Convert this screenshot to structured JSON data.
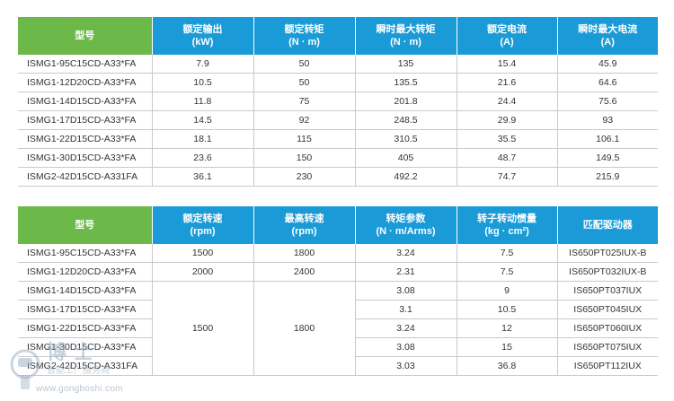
{
  "table1": {
    "headers": [
      {
        "l1": "型号",
        "l2": ""
      },
      {
        "l1": "额定输出",
        "l2": "(kW)"
      },
      {
        "l1": "额定转矩",
        "l2": "(N · m)"
      },
      {
        "l1": "瞬时最大转矩",
        "l2": "(N · m)"
      },
      {
        "l1": "额定电流",
        "l2": "(A)"
      },
      {
        "l1": "瞬时最大电流",
        "l2": "(A)"
      }
    ],
    "rows": [
      [
        "ISMG1-95C15CD-A33*FA",
        "7.9",
        "50",
        "135",
        "15.4",
        "45.9"
      ],
      [
        "ISMG1-12D20CD-A33*FA",
        "10.5",
        "50",
        "135.5",
        "21.6",
        "64.6"
      ],
      [
        "ISMG1-14D15CD-A33*FA",
        "11.8",
        "75",
        "201.8",
        "24.4",
        "75.6"
      ],
      [
        "ISMG1-17D15CD-A33*FA",
        "14.5",
        "92",
        "248.5",
        "29.9",
        "93"
      ],
      [
        "ISMG1-22D15CD-A33*FA",
        "18.1",
        "115",
        "310.5",
        "35.5",
        "106.1"
      ],
      [
        "ISMG1-30D15CD-A33*FA",
        "23.6",
        "150",
        "405",
        "48.7",
        "149.5"
      ],
      [
        "ISMG2-42D15CD-A331FA",
        "36.1",
        "230",
        "492.2",
        "74.7",
        "215.9"
      ]
    ]
  },
  "table2": {
    "headers": [
      {
        "l1": "型号",
        "l2": ""
      },
      {
        "l1": "额定转速",
        "l2": "(rpm)"
      },
      {
        "l1": "最高转速",
        "l2": "(rpm)"
      },
      {
        "l1": "转矩参数",
        "l2": "(N · m/Arms)"
      },
      {
        "l1": "转子转动惯量",
        "l2": "(kg · cm²)"
      },
      {
        "l1": "匹配驱动器",
        "l2": ""
      }
    ],
    "rows": [
      {
        "model": "ISMG1-95C15CD-A33*FA",
        "rated_speed": "1500",
        "max_speed": "1800",
        "torque_param": "3.24",
        "inertia": "7.5",
        "drive": "IS650PT025IUX-B"
      },
      {
        "model": "ISMG1-12D20CD-A33*FA",
        "rated_speed": "2000",
        "max_speed": "2400",
        "torque_param": "2.31",
        "inertia": "7.5",
        "drive": "IS650PT032IUX-B"
      },
      {
        "model": "ISMG1-14D15CD-A33*FA",
        "torque_param": "3.08",
        "inertia": "9",
        "drive": "IS650PT037IUX"
      },
      {
        "model": "ISMG1-17D15CD-A33*FA",
        "torque_param": "3.1",
        "inertia": "10.5",
        "drive": "IS650PT045IUX"
      },
      {
        "model": "ISMG1-22D15CD-A33*FA",
        "torque_param": "3.24",
        "inertia": "12",
        "drive": "IS650PT060IUX"
      },
      {
        "model": "ISMG1-30D15CD-A33*FA",
        "torque_param": "3.08",
        "inertia": "15",
        "drive": "IS650PT075IUX"
      },
      {
        "model": "ISMG2-42D15CD-A331FA",
        "torque_param": "3.03",
        "inertia": "36.8",
        "drive": "IS650PT112IUX"
      }
    ],
    "merged_rated_speed": "1500",
    "merged_max_speed": "1800"
  },
  "watermark": {
    "url": "www.gongboshi.com",
    "colors": {
      "primary": "#1a9ad6",
      "model_header": "#6cb94a"
    }
  }
}
